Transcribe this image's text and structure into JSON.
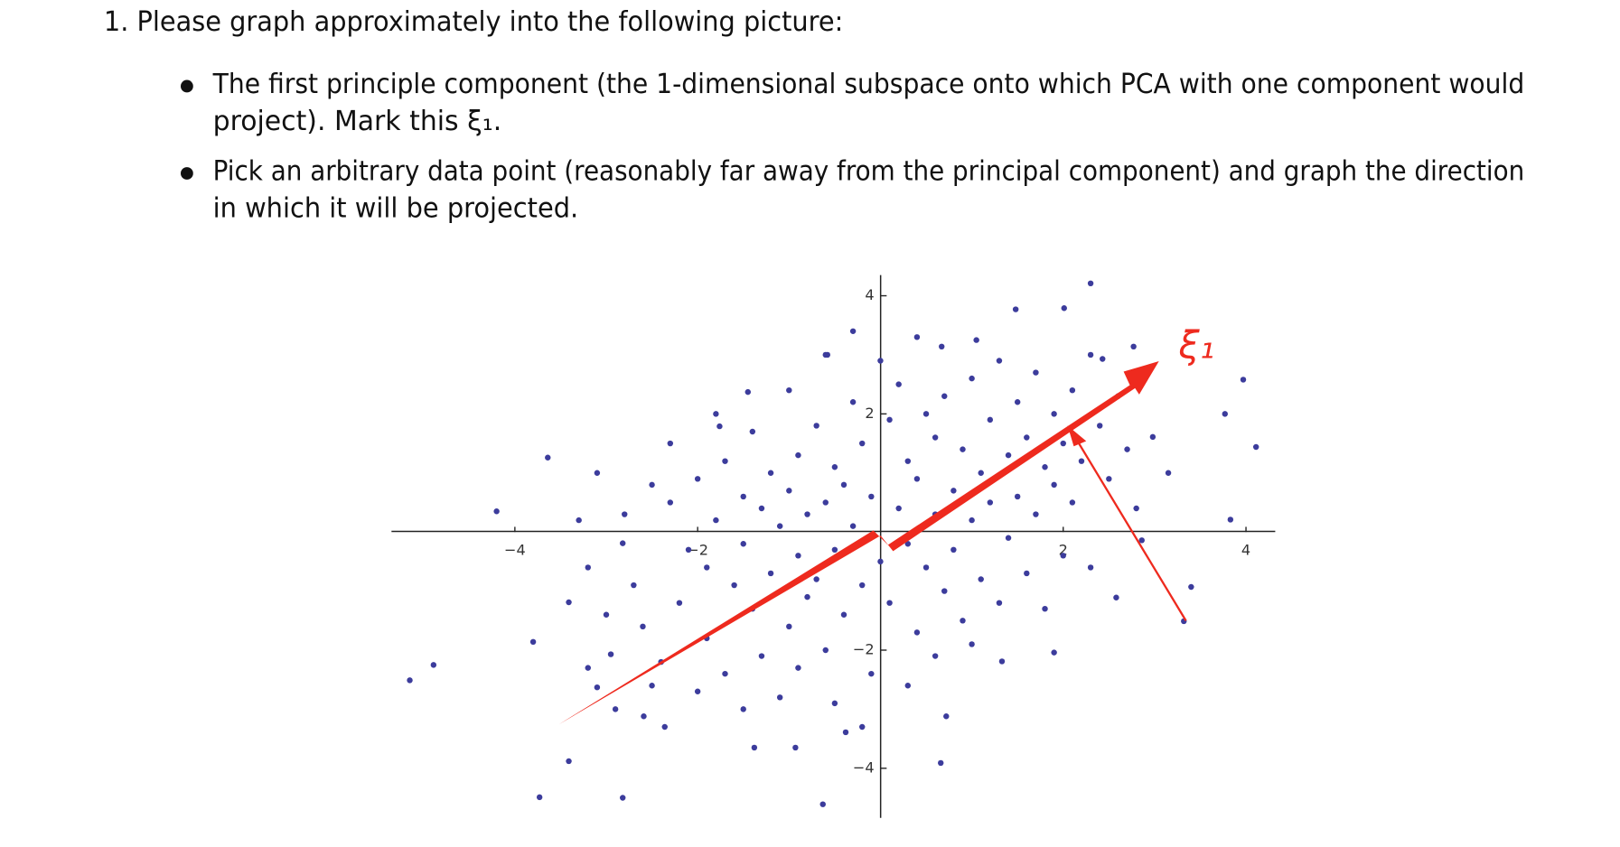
{
  "question": {
    "text": "1. Please graph approximately into the following picture:",
    "items": [
      {
        "lines": [
          "The first principle component (the 1-dimensional subspace onto which PCA with one component would",
          "project). Mark this ξ₁."
        ]
      },
      {
        "lines": [
          "Pick an arbitrary data point (reasonably far away from the principal component) and graph the direction",
          "in which it will be projected."
        ]
      }
    ]
  },
  "chart_data": {
    "type": "scatter",
    "color": "#3c3c9c",
    "annotation": "ξ₁",
    "annotation_color": "#ee2a1e",
    "xlim": [
      -5.35,
      4.32
    ],
    "ylim": [
      -4.84,
      4.35
    ],
    "xticks": [
      {
        "value": -4,
        "label": "−4"
      },
      {
        "value": -2,
        "label": "−2"
      },
      2,
      4
    ],
    "yticks": [
      {
        "value": -4,
        "label": "−4"
      },
      {
        "value": -2,
        "label": "−2"
      },
      2,
      4
    ],
    "x": [
      -5.15,
      -4.89,
      -4.2,
      -3.64,
      -3.73,
      -3.41,
      -2.82,
      -0.63,
      0.66,
      0.72,
      2.3,
      2.01,
      1.48,
      4.11,
      3.77,
      3.97,
      3.32,
      3.4,
      3.83,
      -1.45,
      -1.76,
      -0.58,
      0.67,
      1.05,
      2.77,
      2.43,
      -3.2,
      -3.41,
      -3.8,
      -2.82,
      -2.95,
      -3.1,
      -2.59,
      -2.36,
      -1.38,
      -0.93,
      -0.38,
      1.33,
      1.9,
      2.58,
      2.86,
      3.15,
      2.98,
      -2.5,
      -2.3,
      -2.1,
      -2.0,
      -1.9,
      -1.8,
      -1.7,
      -1.6,
      -1.5,
      -1.5,
      -1.4,
      -1.3,
      -1.2,
      -1.2,
      -1.1,
      -1.0,
      -1.0,
      -0.9,
      -0.9,
      -0.8,
      -0.8,
      -0.7,
      -0.7,
      -0.6,
      -0.6,
      -0.5,
      -0.5,
      -0.4,
      -0.4,
      -0.3,
      -0.3,
      -0.2,
      -0.2,
      -0.1,
      -0.1,
      0.0,
      0.1,
      0.1,
      0.2,
      0.2,
      0.3,
      0.3,
      0.4,
      0.4,
      0.5,
      0.5,
      0.6,
      0.6,
      0.7,
      0.7,
      0.8,
      0.8,
      0.9,
      0.9,
      1.0,
      1.0,
      1.1,
      1.1,
      1.2,
      1.2,
      1.3,
      1.3,
      1.4,
      1.4,
      1.5,
      1.5,
      1.6,
      1.6,
      1.7,
      1.7,
      1.8,
      1.8,
      1.9,
      1.9,
      2.0,
      2.0,
      2.1,
      2.1,
      2.2,
      2.3,
      2.3,
      2.4,
      2.5,
      2.6,
      2.7,
      2.8,
      -2.7,
      -2.8,
      -2.6,
      -2.4,
      -2.2,
      -2.0,
      -1.9,
      -1.7,
      -1.5,
      -1.3,
      -1.1,
      -0.9,
      -0.5,
      -0.2,
      0.3,
      0.6,
      1.0,
      -3.0,
      -3.2,
      -2.9,
      -2.5,
      -2.3,
      -1.8,
      -1.4,
      -1.0,
      -0.6,
      0.0,
      0.4,
      -0.3,
      -3.1,
      -3.3
    ],
    "values": [
      -2.51,
      -2.25,
      0.35,
      1.26,
      -4.49,
      -3.88,
      -4.5,
      -4.61,
      -3.91,
      -3.12,
      4.21,
      3.79,
      3.77,
      1.44,
      2.0,
      2.58,
      -1.51,
      -0.93,
      0.21,
      2.37,
      1.79,
      3.0,
      3.14,
      3.25,
      3.14,
      2.93,
      -0.6,
      -1.19,
      -1.86,
      -0.19,
      -2.07,
      -2.63,
      -3.12,
      -3.3,
      -3.65,
      -3.65,
      -3.39,
      -2.19,
      -2.04,
      -1.11,
      -0.14,
      1.0,
      1.61,
      0.8,
      0.5,
      -0.3,
      0.9,
      -0.6,
      0.2,
      1.2,
      -0.9,
      0.6,
      -0.2,
      -1.3,
      0.4,
      1.0,
      -0.7,
      0.1,
      -1.6,
      0.7,
      -0.4,
      1.3,
      -1.1,
      0.3,
      1.8,
      -0.8,
      0.5,
      -2.0,
      1.1,
      -0.3,
      0.8,
      -1.4,
      2.2,
      0.1,
      -0.9,
      1.5,
      -2.4,
      0.6,
      -0.5,
      1.9,
      -1.2,
      0.4,
      2.5,
      -0.2,
      1.2,
      -1.7,
      0.9,
      2.0,
      -0.6,
      0.3,
      1.6,
      -1.0,
      2.3,
      0.7,
      -0.3,
      1.4,
      -1.5,
      0.2,
      2.6,
      1.0,
      -0.8,
      1.9,
      0.5,
      -1.2,
      2.9,
      1.3,
      -0.1,
      2.2,
      0.6,
      -0.7,
      1.6,
      2.7,
      0.3,
      1.1,
      -1.3,
      2.0,
      0.8,
      1.5,
      -0.4,
      2.4,
      0.5,
      1.2,
      3.0,
      -0.6,
      1.8,
      0.9,
      2.3,
      1.4,
      0.4,
      -0.9,
      0.3,
      -1.6,
      -2.2,
      -1.2,
      -2.7,
      -1.8,
      -2.4,
      -3.0,
      -2.1,
      -2.8,
      -2.3,
      -2.9,
      -3.3,
      -2.6,
      -2.1,
      -1.9,
      -1.4,
      -2.3,
      -3.0,
      -2.6,
      1.5,
      2.0,
      1.7,
      2.4,
      3.0,
      2.9,
      3.3,
      3.4,
      1.0,
      0.2
    ]
  }
}
